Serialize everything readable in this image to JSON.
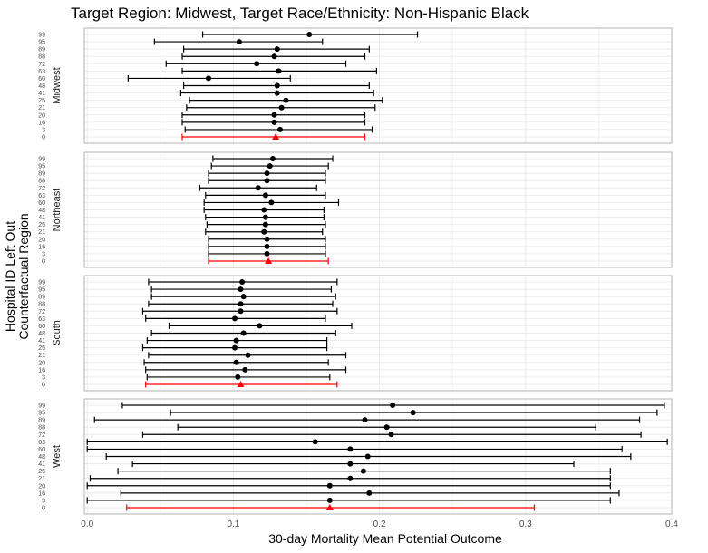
{
  "chart_data": {
    "type": "scatter",
    "title": "Target Region: Midwest, Target Race/Ethnicity: Non-Hispanic Black",
    "xlabel": "30-day Mortality Mean Potential Outcome",
    "ylabel_lines": [
      "Hospital ID Left Out",
      "Counterfactual Region"
    ],
    "xlim": [
      -0.002,
      0.4
    ],
    "xticks": [
      0.0,
      0.1,
      0.2,
      0.3,
      0.4
    ],
    "xtick_labels": [
      "0.0",
      "0.1",
      "0.2",
      "0.3",
      "0.4"
    ],
    "grid": true,
    "colors": {
      "estimate": "#000000",
      "target": "#ff0000",
      "grid": "#ebebeb",
      "panel_border": "#b3b3b3"
    },
    "facets": [
      {
        "name": "Midwest",
        "rows": [
          {
            "id": "0",
            "est": 0.129,
            "lo": 0.065,
            "hi": 0.19,
            "target": true
          },
          {
            "id": "3",
            "est": 0.132,
            "lo": 0.067,
            "hi": 0.195
          },
          {
            "id": "16",
            "est": 0.128,
            "lo": 0.065,
            "hi": 0.19
          },
          {
            "id": "20",
            "est": 0.128,
            "lo": 0.065,
            "hi": 0.19
          },
          {
            "id": "21",
            "est": 0.133,
            "lo": 0.068,
            "hi": 0.197
          },
          {
            "id": "25",
            "est": 0.136,
            "lo": 0.07,
            "hi": 0.202
          },
          {
            "id": "41",
            "est": 0.13,
            "lo": 0.064,
            "hi": 0.196
          },
          {
            "id": "48",
            "est": 0.13,
            "lo": 0.066,
            "hi": 0.193
          },
          {
            "id": "60",
            "est": 0.083,
            "lo": 0.028,
            "hi": 0.139
          },
          {
            "id": "63",
            "est": 0.131,
            "lo": 0.065,
            "hi": 0.198
          },
          {
            "id": "72",
            "est": 0.116,
            "lo": 0.054,
            "hi": 0.177
          },
          {
            "id": "88",
            "est": 0.128,
            "lo": 0.065,
            "hi": 0.19
          },
          {
            "id": "89",
            "est": 0.13,
            "lo": 0.066,
            "hi": 0.193
          },
          {
            "id": "95",
            "est": 0.104,
            "lo": 0.046,
            "hi": 0.161
          },
          {
            "id": "99",
            "est": 0.152,
            "lo": 0.079,
            "hi": 0.226
          }
        ]
      },
      {
        "name": "Northeast",
        "rows": [
          {
            "id": "0",
            "est": 0.124,
            "lo": 0.083,
            "hi": 0.165,
            "target": true
          },
          {
            "id": "3",
            "est": 0.123,
            "lo": 0.083,
            "hi": 0.163
          },
          {
            "id": "16",
            "est": 0.123,
            "lo": 0.083,
            "hi": 0.163
          },
          {
            "id": "20",
            "est": 0.123,
            "lo": 0.083,
            "hi": 0.163
          },
          {
            "id": "21",
            "est": 0.121,
            "lo": 0.081,
            "hi": 0.161
          },
          {
            "id": "25",
            "est": 0.122,
            "lo": 0.082,
            "hi": 0.163
          },
          {
            "id": "41",
            "est": 0.122,
            "lo": 0.081,
            "hi": 0.162
          },
          {
            "id": "48",
            "est": 0.121,
            "lo": 0.08,
            "hi": 0.162
          },
          {
            "id": "60",
            "est": 0.126,
            "lo": 0.08,
            "hi": 0.172
          },
          {
            "id": "63",
            "est": 0.122,
            "lo": 0.081,
            "hi": 0.163
          },
          {
            "id": "72",
            "est": 0.117,
            "lo": 0.077,
            "hi": 0.157
          },
          {
            "id": "88",
            "est": 0.123,
            "lo": 0.083,
            "hi": 0.163
          },
          {
            "id": "89",
            "est": 0.123,
            "lo": 0.083,
            "hi": 0.163
          },
          {
            "id": "95",
            "est": 0.125,
            "lo": 0.085,
            "hi": 0.165
          },
          {
            "id": "99",
            "est": 0.127,
            "lo": 0.086,
            "hi": 0.168
          }
        ]
      },
      {
        "name": "South",
        "rows": [
          {
            "id": "0",
            "est": 0.105,
            "lo": 0.04,
            "hi": 0.171,
            "target": true
          },
          {
            "id": "3",
            "est": 0.103,
            "lo": 0.041,
            "hi": 0.166
          },
          {
            "id": "16",
            "est": 0.108,
            "lo": 0.04,
            "hi": 0.177
          },
          {
            "id": "20",
            "est": 0.102,
            "lo": 0.039,
            "hi": 0.165
          },
          {
            "id": "21",
            "est": 0.11,
            "lo": 0.042,
            "hi": 0.177
          },
          {
            "id": "25",
            "est": 0.101,
            "lo": 0.038,
            "hi": 0.164
          },
          {
            "id": "41",
            "est": 0.102,
            "lo": 0.041,
            "hi": 0.164
          },
          {
            "id": "48",
            "est": 0.107,
            "lo": 0.044,
            "hi": 0.17
          },
          {
            "id": "60",
            "est": 0.118,
            "lo": 0.056,
            "hi": 0.181
          },
          {
            "id": "63",
            "est": 0.101,
            "lo": 0.04,
            "hi": 0.163
          },
          {
            "id": "72",
            "est": 0.105,
            "lo": 0.038,
            "hi": 0.171
          },
          {
            "id": "88",
            "est": 0.105,
            "lo": 0.042,
            "hi": 0.168
          },
          {
            "id": "89",
            "est": 0.107,
            "lo": 0.044,
            "hi": 0.17
          },
          {
            "id": "95",
            "est": 0.105,
            "lo": 0.044,
            "hi": 0.167
          },
          {
            "id": "99",
            "est": 0.106,
            "lo": 0.042,
            "hi": 0.171
          }
        ]
      },
      {
        "name": "West",
        "rows": [
          {
            "id": "0",
            "est": 0.166,
            "lo": 0.027,
            "hi": 0.306,
            "target": true
          },
          {
            "id": "3",
            "est": 0.166,
            "lo": 0.0,
            "hi": 0.358
          },
          {
            "id": "16",
            "est": 0.193,
            "lo": 0.023,
            "hi": 0.364
          },
          {
            "id": "20",
            "est": 0.166,
            "lo": 0.0,
            "hi": 0.358
          },
          {
            "id": "21",
            "est": 0.18,
            "lo": 0.002,
            "hi": 0.358
          },
          {
            "id": "25",
            "est": 0.189,
            "lo": 0.021,
            "hi": 0.358
          },
          {
            "id": "41",
            "est": 0.18,
            "lo": 0.031,
            "hi": 0.333
          },
          {
            "id": "48",
            "est": 0.192,
            "lo": 0.013,
            "hi": 0.372
          },
          {
            "id": "60",
            "est": 0.18,
            "lo": 0.0,
            "hi": 0.366
          },
          {
            "id": "63",
            "est": 0.156,
            "lo": 0.0,
            "hi": 0.397
          },
          {
            "id": "72",
            "est": 0.208,
            "lo": 0.038,
            "hi": 0.379
          },
          {
            "id": "88",
            "est": 0.205,
            "lo": 0.062,
            "hi": 0.348
          },
          {
            "id": "89",
            "est": 0.19,
            "lo": 0.005,
            "hi": 0.378
          },
          {
            "id": "95",
            "est": 0.223,
            "lo": 0.057,
            "hi": 0.39
          },
          {
            "id": "99",
            "est": 0.209,
            "lo": 0.024,
            "hi": 0.395
          }
        ]
      }
    ]
  }
}
